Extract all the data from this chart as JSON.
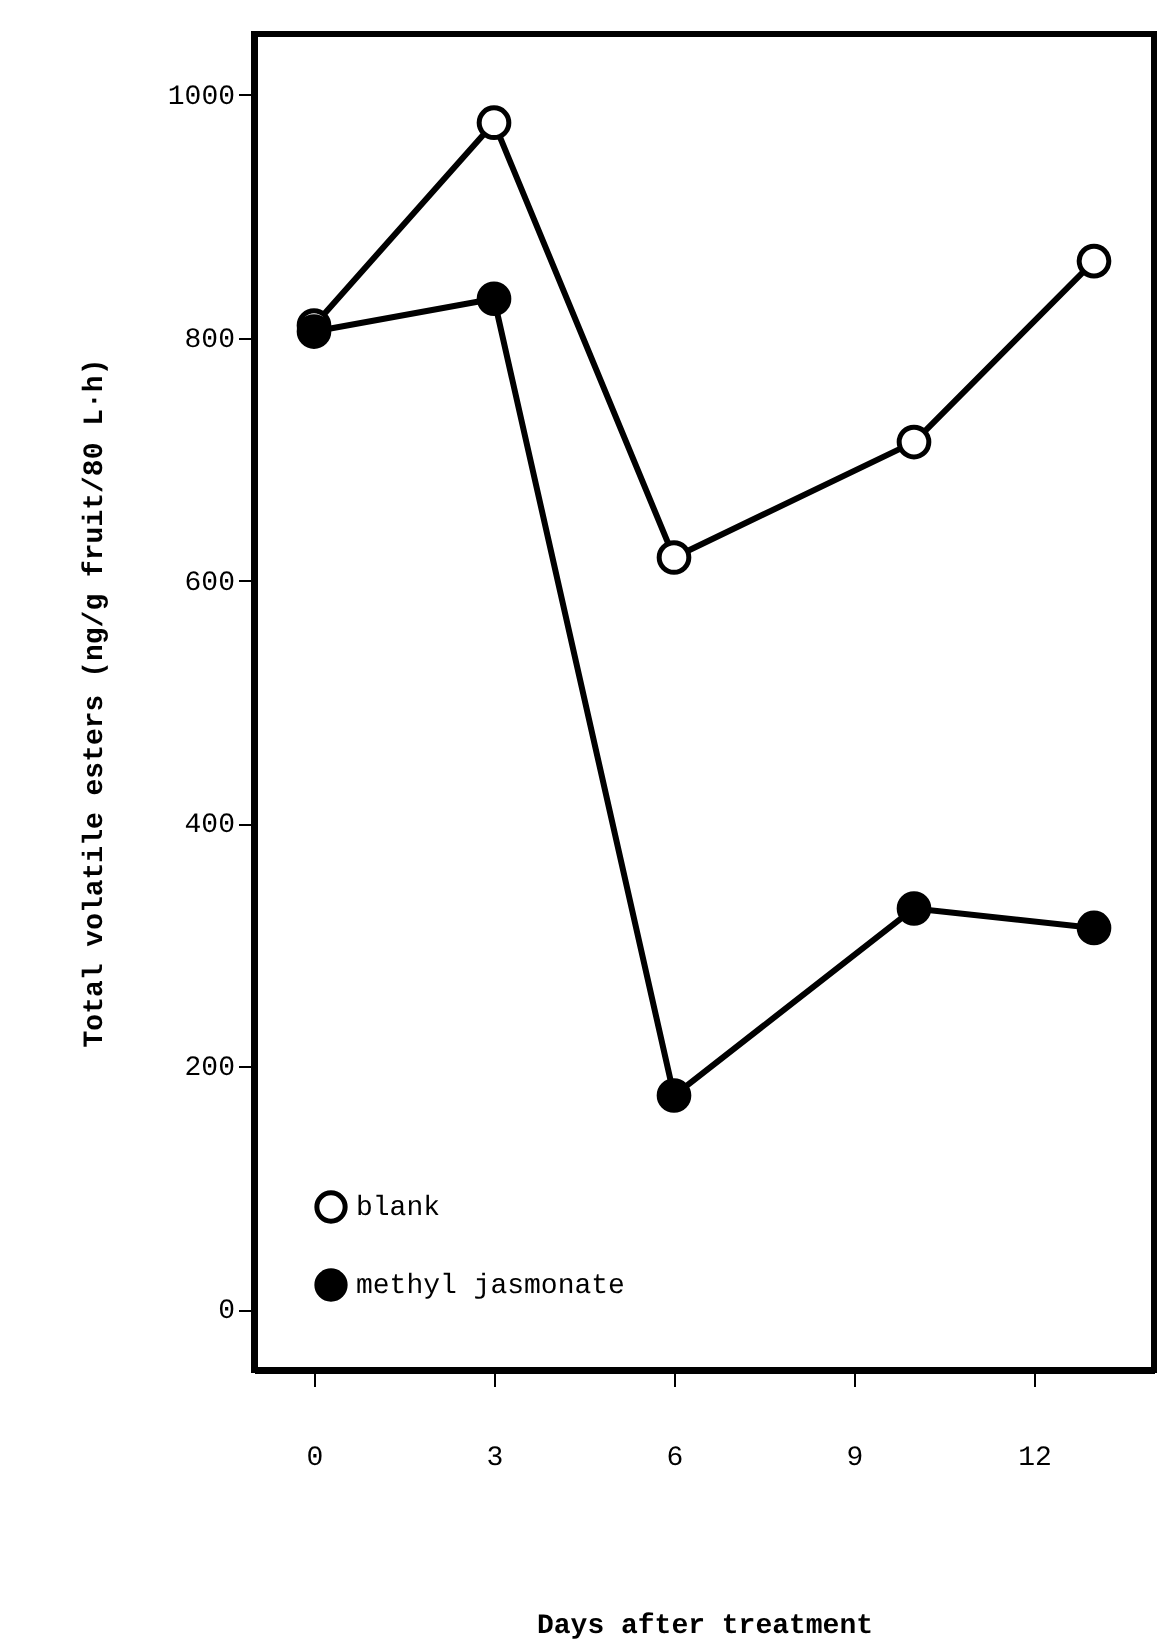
{
  "chart_data": {
    "type": "line",
    "xlabel": "Days after treatment",
    "ylabel": "Total volatile esters  (ng/g fruit/80 L·h)",
    "x": [
      0,
      3,
      6,
      10,
      13
    ],
    "series": [
      {
        "name": "blank",
        "color": "#ffffff",
        "values": [
          810,
          977,
          619,
          714,
          863
        ]
      },
      {
        "name": "methyl jasmonate",
        "color": "#000000",
        "values": [
          805,
          832,
          176,
          330,
          314
        ]
      }
    ],
    "xlim": [
      -1,
      14
    ],
    "xticks": [
      0,
      3,
      6,
      9,
      12
    ],
    "ylim": [
      -50,
      1050
    ],
    "yticks": [
      0,
      200,
      400,
      600,
      800,
      1000
    ],
    "grid": false,
    "legend": "bottom left",
    "marker": "circle",
    "line_style": "solid"
  }
}
